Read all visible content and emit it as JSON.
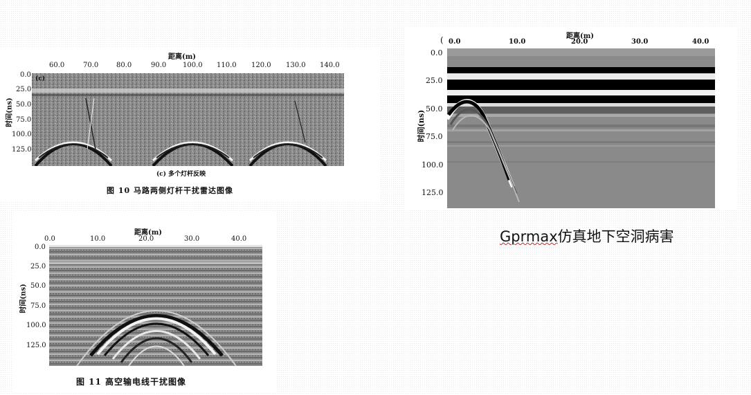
{
  "fig10": {
    "x_title": "距离(m)",
    "y_title": "时间(ns)",
    "x_ticks": [
      "60.0",
      "70.0",
      "80.0",
      "90.0",
      "100.0",
      "110.0",
      "120.0",
      "130.0",
      "140.0"
    ],
    "y_ticks": [
      "0.0",
      "25.0",
      "50.0",
      "75.0",
      "100.0",
      "125.0"
    ],
    "panel_label": "(c)",
    "subcaption": "(c) 多个灯杆反映",
    "caption": "图 10   马路两侧灯杆干扰雷达图像"
  },
  "sim": {
    "x_title": "距离(m)",
    "y_title": "时间(ns)",
    "x_ticks": [
      "0.0",
      "10.0",
      "20.0",
      "30.0",
      "40.0"
    ],
    "y_ticks": [
      "0.0",
      "25.0",
      "50.0",
      "75.0",
      "100.0",
      "125.0"
    ],
    "left_paren": "(",
    "note_underlined": "Gprmax",
    "note_rest": "仿真地下空洞病害"
  },
  "fig11": {
    "x_title": "距离(m)",
    "y_title": "时间(ns)",
    "x_ticks": [
      "0.0",
      "10.0",
      "20.0",
      "30.0",
      "40.0"
    ],
    "y_ticks": [
      "0.0",
      "25.0",
      "50.0",
      "75.0",
      "100.0",
      "125.0"
    ],
    "caption": "图 11   高空输电线干扰图像"
  }
}
